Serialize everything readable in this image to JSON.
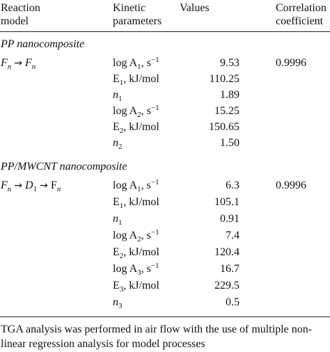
{
  "table": {
    "headers": {
      "model_line1": "Reaction",
      "model_line2": "model",
      "param_line1": "Kinetic",
      "param_line2": "parameters",
      "values": "Values",
      "corr_line1": "Correlation",
      "corr_line2": "coefficient"
    },
    "sections": [
      {
        "title": "PP nanocomposite",
        "model": {
          "f1": "F",
          "n1": "n",
          "f2": "F",
          "n2": "n"
        },
        "correlation": "0.9996",
        "rows": [
          {
            "name": "log A",
            "sub": "1",
            "unit": ", s",
            "sup": "−1",
            "value": "9.53"
          },
          {
            "name": "E",
            "sub": "1",
            "unit": ", kJ/mol",
            "sup": "",
            "value": "110.25"
          },
          {
            "name": "n",
            "sub": "1",
            "unit": "",
            "sup": "",
            "value": "1.89"
          },
          {
            "name": "log A",
            "sub": "2",
            "unit": ", s",
            "sup": "−1",
            "value": "15.25"
          },
          {
            "name": "E",
            "sub": "2",
            "unit": ", kJ/mol",
            "sup": "",
            "value": "150.65"
          },
          {
            "name": "n",
            "sub": "2",
            "unit": "",
            "sup": "",
            "value": "1.50"
          }
        ]
      },
      {
        "title": "PP/MWCNT nanocomposite",
        "model": {
          "f1": "F",
          "n1": "n",
          "f2": "D",
          "n2": "1",
          "f3": "F",
          "n3": "n"
        },
        "correlation": "0.9996",
        "rows": [
          {
            "name": "log A",
            "sub": "1",
            "unit": ", s",
            "sup": "−1",
            "value": "6.3"
          },
          {
            "name": "E",
            "sub": "1",
            "unit": ", kJ/mol",
            "sup": "",
            "value": "105.1"
          },
          {
            "name": "n",
            "sub": "1",
            "unit": "",
            "sup": "",
            "value": "0.91"
          },
          {
            "name": "log A",
            "sub": "2",
            "unit": ", s",
            "sup": "−1",
            "value": "7.4"
          },
          {
            "name": "E",
            "sub": "2",
            "unit": ", kJ/mol",
            "sup": "",
            "value": "120.4"
          },
          {
            "name": "log A",
            "sub": "3",
            "unit": ", s",
            "sup": "−1",
            "value": "16.7"
          },
          {
            "name": "E",
            "sub": "3",
            "unit": ", kJ/mol",
            "sup": "",
            "value": "229.5"
          },
          {
            "name": "n",
            "sub": "3",
            "unit": "",
            "sup": "",
            "value": "0.5"
          }
        ]
      }
    ],
    "footnote": "TGA analysis was performed in air flow with the use of multiple non-linear regression analysis for model processes"
  }
}
